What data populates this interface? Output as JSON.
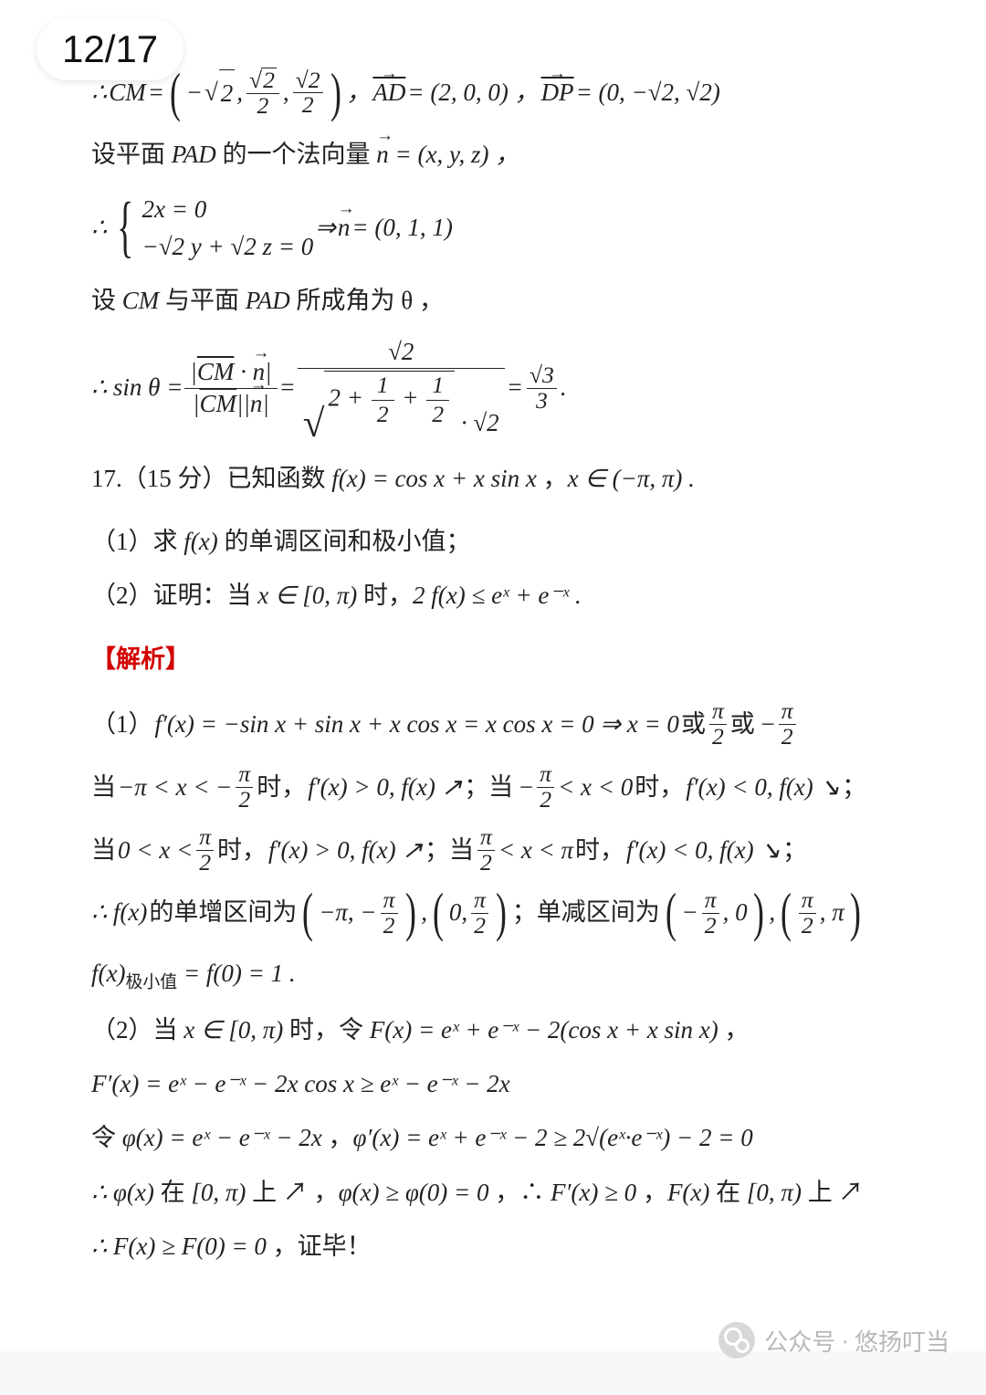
{
  "page_counter": "12/17",
  "watermark": {
    "prefix": "公众号",
    "sep": "·",
    "name": "悠扬叮当"
  },
  "colors": {
    "background": "#f8f8f8",
    "paper": "#ffffff",
    "text": "#222222",
    "accent_red": "#d20000",
    "watermark_text": "#b8b8b8",
    "watermark_icon": "#d8d8d8"
  },
  "line01_pre": "∴",
  "line01_cm": "CM",
  "line01_eq": " = ",
  "line01_vec_x_neg": "−",
  "line01_vec_y_num": "2",
  "line01_vec_y_den": "2",
  "line01_vec_z_num": "√2",
  "line01_vec_z_den": "2",
  "line01_ad": "AD",
  "line01_ad_val": " = (2, 0, 0) ，",
  "line01_dp": "DP",
  "line01_dp_val": " = (0, −√2, √2)",
  "line02_a": "设平面 ",
  "line02_b": "PAD",
  "line02_c": " 的一个法向量 ",
  "line02_n": "n",
  "line02_d": " = (x, y, z) ，",
  "line03_pre": "∴ ",
  "line03_r1": "2x = 0",
  "line03_r2_a": "−√2 y + √2 z = 0",
  "line03_impl": " ⇒ ",
  "line03_n": "n",
  "line03_res": " = (0, 1, 1)",
  "line04_a": "设 ",
  "line04_b": "CM",
  "line04_c": " 与平面 ",
  "line04_d": "PAD",
  "line04_e": " 所成角为 θ ，",
  "line05_pre": "∴ sin θ = ",
  "line05_num1": "|CM · n|",
  "line05_den1a": "|CM|",
  "line05_den1b": "|n|",
  "line05_eq": " = ",
  "line05_num2": "√2",
  "line05_den2_inner": "2 + 1/2 + 1/2",
  "line05_den2_tail": " · √2",
  "line05_num3": "√3",
  "line05_den3": "3",
  "line05_dot": ".",
  "line06_a": "17.（15 分）已知函数 ",
  "line06_b": "f(x) = cos x + x sin x",
  "line06_c": " ，",
  "line06_d": "x ∈ (−π, π)",
  "line06_e": " .",
  "line07_a": "（1）求 ",
  "line07_b": "f(x)",
  "line07_c": " 的单调区间和极小值；",
  "line08_a": "（2）证明：当 ",
  "line08_b": "x ∈ [0, π)",
  "line08_c": " 时，",
  "line08_d": "2 f(x) ≤ eˣ + e⁻ˣ",
  "line08_e": " .",
  "line09": "【解析】",
  "line10_a": "（1）",
  "line10_b": "f′(x) = −sin x + sin x + x cos x = x cos x = 0 ⇒ x = 0",
  "line10_c": " 或 ",
  "line10_d_num": "π",
  "line10_d_den": "2",
  "line10_e": " 或 −",
  "line11_a": "当 ",
  "line11_b": "−π < x < −",
  "line11_frac_num": "π",
  "line11_frac_den": "2",
  "line11_c": " 时，",
  "line11_d": "f′(x) > 0, f(x) ↗",
  "line11_e": " ；当 −",
  "line11_f": " < x < 0",
  "line11_g": " 时，",
  "line11_h": "f′(x) < 0, f(x) ↘",
  "line11_i": " ；",
  "line12_a": "当 ",
  "line12_b": "0 < x < ",
  "line12_c": " 时，",
  "line12_d": "f′(x) > 0, f(x) ↗",
  "line12_e": " ；当 ",
  "line12_f": " < x < π",
  "line12_g": " 时，",
  "line12_h": "f′(x) < 0, f(x) ↘",
  "line12_i": " ；",
  "line13_a": "∴ f(x)",
  "line13_b": " 的单增区间为 ",
  "line13_int1_a": "−π, −",
  "line13_sep": " , ",
  "line13_int2_a": "0, ",
  "line13_c": " ；单减区间为 ",
  "line13_int3_a": "−",
  "line13_int3_b": ", 0",
  "line13_int4_a": "",
  "line13_int4_b": ", π",
  "line14_a": "f(x)",
  "line14_sub": "极小值",
  "line14_b": " = f(0) = 1 .",
  "line15_a": "（2）当 ",
  "line15_b": "x ∈ [0, π)",
  "line15_c": " 时，令 ",
  "line15_d": "F(x) = eˣ + e⁻ˣ − 2(cos x + x sin x)",
  "line15_e": " ，",
  "line16": "F′(x) = eˣ − e⁻ˣ − 2x cos x ≥ eˣ − e⁻ˣ − 2x",
  "line17_a": "令 ",
  "line17_b": "φ(x) = eˣ − e⁻ˣ − 2x",
  "line17_c": " ，",
  "line17_d": "φ′(x) = eˣ + e⁻ˣ − 2 ≥ 2√(eˣ·e⁻ˣ) − 2 = 0",
  "line18_a": "∴ φ(x)",
  "line18_b": " 在 ",
  "line18_c": "[0, π)",
  "line18_d": " 上 ↗ ，",
  "line18_e": "φ(x) ≥ φ(0) = 0",
  "line18_f": " ，∴ ",
  "line18_g": "F′(x) ≥ 0",
  "line18_h": " ，",
  "line18_i": "F(x)",
  "line18_j": " 在 ",
  "line18_k": "[0, π)",
  "line18_l": " 上 ↗",
  "line19_a": "∴ F(x) ≥ F(0) = 0",
  "line19_b": " ，证毕！"
}
